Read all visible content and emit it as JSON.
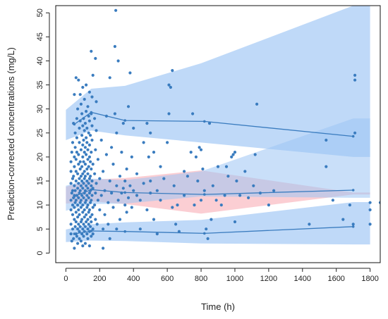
{
  "chart_data": {
    "type": "scatter",
    "title": "",
    "xlabel": "Time (h)",
    "ylabel": "Prediction-corrected concentrations (mg/L)",
    "xlim": [
      -60,
      1860
    ],
    "ylim": [
      -2,
      51.5
    ],
    "x_ticks": [
      0,
      200,
      400,
      600,
      800,
      1000,
      1200,
      1400,
      1600,
      1800
    ],
    "y_ticks": [
      0,
      5,
      10,
      15,
      20,
      25,
      30,
      35,
      40,
      45,
      50
    ],
    "grid": false,
    "legend": "none",
    "bands": [
      {
        "name": "",
        "color": "#9cc4f4",
        "opacity": 0.65,
        "x": [
          0,
          150,
          350,
          800,
          1700,
          1800
        ],
        "lower": [
          23.5,
          25.5,
          24.5,
          23.0,
          20.0,
          20.0
        ],
        "upper": [
          29.8,
          34.2,
          34.8,
          39.5,
          51.5,
          51.5
        ]
      },
      {
        "name": "",
        "color": "#f7a6ae",
        "opacity": 0.55,
        "x": [
          0,
          150,
          350,
          800,
          1700,
          1800
        ],
        "lower": [
          10.3,
          10.8,
          10.2,
          8.2,
          12.2,
          12.2
        ],
        "upper": [
          13.8,
          15.3,
          15.6,
          17.2,
          12.6,
          12.6
        ]
      },
      {
        "name": "",
        "color": "#9cc4f4",
        "opacity": 0.55,
        "x": [
          0,
          150,
          350,
          800,
          1700,
          1800
        ],
        "lower": [
          8.8,
          10.2,
          10.3,
          11.8,
          11.5,
          11.5
        ],
        "upper": [
          14.0,
          15.5,
          15.2,
          17.0,
          28.0,
          28.0
        ]
      },
      {
        "name": "",
        "color": "#9cc4f4",
        "opacity": 0.65,
        "x": [
          0,
          150,
          350,
          800,
          1700,
          1800
        ],
        "lower": [
          2.3,
          2.6,
          2.5,
          2.0,
          1.8,
          1.8
        ],
        "upper": [
          4.9,
          6.0,
          6.4,
          6.9,
          10.6,
          10.6
        ]
      }
    ],
    "series": [
      {
        "name": "",
        "color": "#3a7cbf",
        "x": [
          50,
          150,
          350,
          820,
          1700
        ],
        "values": [
          26.8,
          29.3,
          27.6,
          27.4,
          24.3
        ]
      },
      {
        "name": "",
        "color": "#3a7cbf",
        "x": [
          50,
          150,
          350,
          820,
          1700
        ],
        "values": [
          11.8,
          13.2,
          12.6,
          12.2,
          13.1
        ]
      },
      {
        "name": "",
        "color": "#3a7cbf",
        "x": [
          50,
          150,
          350,
          820,
          1700
        ],
        "values": [
          4.0,
          4.6,
          4.5,
          4.1,
          5.5
        ]
      }
    ],
    "points_color": "#3a7cbf",
    "points": [
      [
        30,
        14.5
      ],
      [
        30,
        11
      ],
      [
        30,
        9
      ],
      [
        30,
        6
      ],
      [
        30,
        4
      ],
      [
        30,
        17
      ],
      [
        30,
        19
      ],
      [
        35,
        2.5
      ],
      [
        35,
        21
      ],
      [
        35,
        12.5
      ],
      [
        40,
        8
      ],
      [
        40,
        13
      ],
      [
        40,
        15.5
      ],
      [
        40,
        5
      ],
      [
        40,
        10
      ],
      [
        40,
        23
      ],
      [
        45,
        3
      ],
      [
        45,
        11.5
      ],
      [
        45,
        16
      ],
      [
        45,
        27
      ],
      [
        50,
        7
      ],
      [
        50,
        9.5
      ],
      [
        50,
        12
      ],
      [
        50,
        14
      ],
      [
        50,
        18
      ],
      [
        50,
        20
      ],
      [
        50,
        33
      ],
      [
        50,
        1
      ],
      [
        55,
        5.5
      ],
      [
        55,
        10.5
      ],
      [
        55,
        22
      ],
      [
        55,
        25
      ],
      [
        55,
        13
      ],
      [
        60,
        4
      ],
      [
        60,
        6.5
      ],
      [
        60,
        8.5
      ],
      [
        60,
        15
      ],
      [
        60,
        17
      ],
      [
        60,
        19.5
      ],
      [
        60,
        36.5
      ],
      [
        60,
        11
      ],
      [
        65,
        3.5
      ],
      [
        65,
        12
      ],
      [
        65,
        21
      ],
      [
        65,
        24
      ],
      [
        65,
        28
      ],
      [
        70,
        5
      ],
      [
        70,
        7.5
      ],
      [
        70,
        10
      ],
      [
        70,
        13.5
      ],
      [
        70,
        16.5
      ],
      [
        70,
        30
      ],
      [
        70,
        2
      ],
      [
        75,
        6
      ],
      [
        75,
        9
      ],
      [
        75,
        11.5
      ],
      [
        75,
        14.5
      ],
      [
        75,
        18.5
      ],
      [
        75,
        20.5
      ],
      [
        75,
        36
      ],
      [
        80,
        4.5
      ],
      [
        80,
        8
      ],
      [
        80,
        12.5
      ],
      [
        80,
        15.5
      ],
      [
        80,
        23
      ],
      [
        80,
        26
      ],
      [
        80,
        3
      ],
      [
        85,
        5.5
      ],
      [
        85,
        10.5
      ],
      [
        85,
        13
      ],
      [
        85,
        17.5
      ],
      [
        85,
        19
      ],
      [
        85,
        27.5
      ],
      [
        85,
        33
      ],
      [
        90,
        6.5
      ],
      [
        90,
        9.5
      ],
      [
        90,
        11
      ],
      [
        90,
        14
      ],
      [
        90,
        16
      ],
      [
        90,
        21.5
      ],
      [
        90,
        31
      ],
      [
        90,
        2.5
      ],
      [
        95,
        4
      ],
      [
        95,
        7
      ],
      [
        95,
        12
      ],
      [
        95,
        15
      ],
      [
        95,
        18
      ],
      [
        95,
        24.5
      ],
      [
        95,
        29
      ],
      [
        100,
        5
      ],
      [
        100,
        8.5
      ],
      [
        100,
        10
      ],
      [
        100,
        13.5
      ],
      [
        100,
        16.5
      ],
      [
        100,
        20
      ],
      [
        100,
        22.5
      ],
      [
        100,
        26.5
      ],
      [
        100,
        34.5
      ],
      [
        100,
        1.5
      ],
      [
        105,
        3.5
      ],
      [
        105,
        6
      ],
      [
        105,
        11.5
      ],
      [
        105,
        14.5
      ],
      [
        105,
        19
      ],
      [
        105,
        23.5
      ],
      [
        105,
        28
      ],
      [
        110,
        4.5
      ],
      [
        110,
        7.5
      ],
      [
        110,
        9
      ],
      [
        110,
        12.5
      ],
      [
        110,
        15.5
      ],
      [
        110,
        17
      ],
      [
        110,
        21
      ],
      [
        110,
        25.5
      ],
      [
        110,
        32
      ],
      [
        115,
        5.5
      ],
      [
        115,
        10.5
      ],
      [
        115,
        13
      ],
      [
        115,
        16
      ],
      [
        115,
        18.5
      ],
      [
        115,
        22
      ],
      [
        115,
        27
      ],
      [
        115,
        2
      ],
      [
        120,
        6.5
      ],
      [
        120,
        8
      ],
      [
        120,
        11
      ],
      [
        120,
        14
      ],
      [
        120,
        20.5
      ],
      [
        120,
        24
      ],
      [
        120,
        29.5
      ],
      [
        120,
        35
      ],
      [
        125,
        4
      ],
      [
        125,
        9.5
      ],
      [
        125,
        12
      ],
      [
        125,
        15
      ],
      [
        125,
        17.5
      ],
      [
        125,
        23
      ],
      [
        125,
        26
      ],
      [
        130,
        3
      ],
      [
        130,
        5
      ],
      [
        130,
        7
      ],
      [
        130,
        10
      ],
      [
        130,
        13.5
      ],
      [
        130,
        16.5
      ],
      [
        130,
        19.5
      ],
      [
        130,
        21.5
      ],
      [
        130,
        30.5
      ],
      [
        135,
        6
      ],
      [
        135,
        8.5
      ],
      [
        135,
        11.5
      ],
      [
        135,
        14.5
      ],
      [
        135,
        18
      ],
      [
        135,
        25
      ],
      [
        135,
        28.5
      ],
      [
        140,
        4.5
      ],
      [
        140,
        9
      ],
      [
        140,
        12.5
      ],
      [
        140,
        15.5
      ],
      [
        140,
        20
      ],
      [
        140,
        22.5
      ],
      [
        140,
        27.5
      ],
      [
        140,
        33.5
      ],
      [
        140,
        1.5
      ],
      [
        145,
        5.5
      ],
      [
        145,
        7.5
      ],
      [
        145,
        10.5
      ],
      [
        145,
        13
      ],
      [
        145,
        16
      ],
      [
        145,
        19
      ],
      [
        145,
        24.5
      ],
      [
        150,
        3.5
      ],
      [
        150,
        6.5
      ],
      [
        150,
        11
      ],
      [
        150,
        14
      ],
      [
        150,
        17.5
      ],
      [
        150,
        21
      ],
      [
        150,
        29
      ],
      [
        150,
        42
      ],
      [
        155,
        8
      ],
      [
        155,
        12
      ],
      [
        155,
        15
      ],
      [
        155,
        23.5
      ],
      [
        155,
        26.5
      ],
      [
        155,
        32.5
      ],
      [
        160,
        4
      ],
      [
        160,
        9.5
      ],
      [
        160,
        13.5
      ],
      [
        160,
        18.5
      ],
      [
        160,
        37
      ],
      [
        160,
        5
      ],
      [
        170,
        10
      ],
      [
        170,
        16.5
      ],
      [
        170,
        28
      ],
      [
        175,
        7
      ],
      [
        175,
        12.5
      ],
      [
        175,
        21.5
      ],
      [
        175,
        40.5
      ],
      [
        180,
        14.5
      ],
      [
        180,
        25.5
      ],
      [
        180,
        31.5
      ],
      [
        185,
        6
      ],
      [
        190,
        11
      ],
      [
        190,
        19.5
      ],
      [
        200,
        15.5
      ],
      [
        200,
        9
      ],
      [
        210,
        12
      ],
      [
        210,
        23.5
      ],
      [
        220,
        5
      ],
      [
        220,
        17
      ],
      [
        220,
        1
      ],
      [
        230,
        13
      ],
      [
        230,
        8
      ],
      [
        240,
        20.5
      ],
      [
        240,
        28.5
      ],
      [
        250,
        10.5
      ],
      [
        250,
        6
      ],
      [
        260,
        15
      ],
      [
        260,
        36.5
      ],
      [
        260,
        3
      ],
      [
        270,
        12.5
      ],
      [
        270,
        22
      ],
      [
        280,
        9.5
      ],
      [
        280,
        18.5
      ],
      [
        290,
        29
      ],
      [
        290,
        43
      ],
      [
        295,
        50.5
      ],
      [
        300,
        5
      ],
      [
        300,
        14
      ],
      [
        300,
        25
      ],
      [
        310,
        11
      ],
      [
        310,
        40
      ],
      [
        320,
        16
      ],
      [
        320,
        7
      ],
      [
        330,
        12.5
      ],
      [
        330,
        21
      ],
      [
        340,
        13.5
      ],
      [
        340,
        27
      ],
      [
        350,
        10
      ],
      [
        350,
        15
      ],
      [
        360,
        8.5
      ],
      [
        360,
        17.5
      ],
      [
        370,
        30.5
      ],
      [
        370,
        11.5
      ],
      [
        380,
        14
      ],
      [
        380,
        37.5
      ],
      [
        390,
        9.5
      ],
      [
        390,
        20
      ],
      [
        400,
        13
      ],
      [
        400,
        26
      ],
      [
        420,
        12
      ],
      [
        420,
        16.5
      ],
      [
        440,
        5
      ],
      [
        440,
        11
      ],
      [
        460,
        14.5
      ],
      [
        460,
        23
      ],
      [
        480,
        9
      ],
      [
        480,
        27
      ],
      [
        490,
        20
      ],
      [
        500,
        15
      ],
      [
        500,
        12.5
      ],
      [
        500,
        25
      ],
      [
        520,
        7
      ],
      [
        520,
        21
      ],
      [
        540,
        13
      ],
      [
        540,
        4
      ],
      [
        560,
        11
      ],
      [
        560,
        18
      ],
      [
        580,
        15.5
      ],
      [
        600,
        23
      ],
      [
        610,
        29
      ],
      [
        610,
        35
      ],
      [
        620,
        34.5
      ],
      [
        630,
        38
      ],
      [
        630,
        9.5
      ],
      [
        640,
        14
      ],
      [
        650,
        6
      ],
      [
        660,
        10
      ],
      [
        670,
        4.5
      ],
      [
        700,
        12
      ],
      [
        700,
        17
      ],
      [
        720,
        16
      ],
      [
        740,
        21
      ],
      [
        750,
        29
      ],
      [
        760,
        10
      ],
      [
        770,
        20
      ],
      [
        780,
        15
      ],
      [
        790,
        22
      ],
      [
        800,
        11
      ],
      [
        800,
        21.5
      ],
      [
        810,
        17.5
      ],
      [
        820,
        13
      ],
      [
        830,
        5
      ],
      [
        840,
        3
      ],
      [
        850,
        27
      ],
      [
        860,
        7
      ],
      [
        870,
        14
      ],
      [
        890,
        11
      ],
      [
        900,
        18
      ],
      [
        920,
        10
      ],
      [
        940,
        12
      ],
      [
        950,
        18
      ],
      [
        960,
        16
      ],
      [
        980,
        20
      ],
      [
        990,
        20.5
      ],
      [
        1000,
        21
      ],
      [
        1000,
        6.5
      ],
      [
        1010,
        15
      ],
      [
        1030,
        12
      ],
      [
        1060,
        17
      ],
      [
        1080,
        11.5
      ],
      [
        1110,
        14
      ],
      [
        1120,
        20.5
      ],
      [
        1130,
        31
      ],
      [
        1150,
        12.5
      ],
      [
        1200,
        10
      ],
      [
        1230,
        13
      ],
      [
        1440,
        6
      ],
      [
        1540,
        23.5
      ],
      [
        1540,
        18
      ],
      [
        1580,
        11
      ],
      [
        1640,
        7
      ],
      [
        1680,
        10
      ],
      [
        1700,
        6
      ],
      [
        1710,
        37
      ],
      [
        1710,
        36
      ],
      [
        1710,
        25
      ],
      [
        1800,
        10.5
      ],
      [
        1800,
        9
      ],
      [
        1800,
        6
      ],
      [
        1860,
        10.5
      ]
    ]
  }
}
